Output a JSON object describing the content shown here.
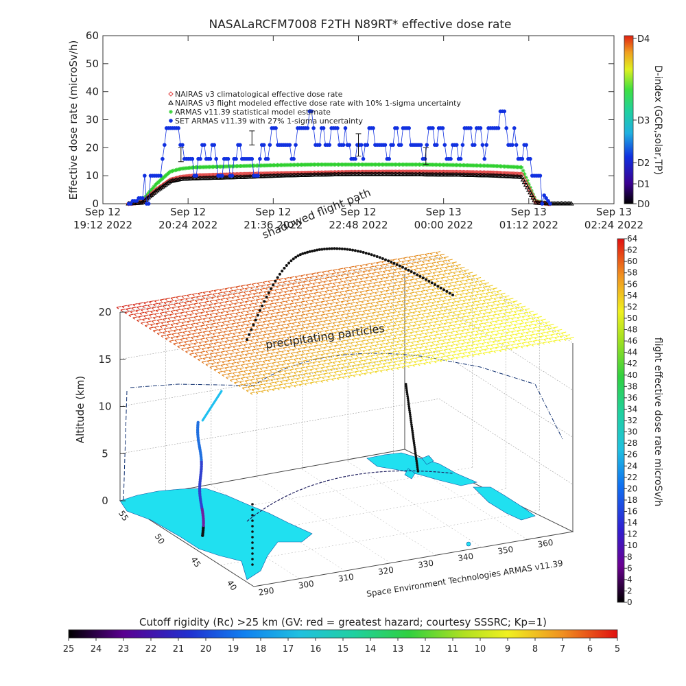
{
  "chart_data": [
    {
      "type": "scatter",
      "title": "NASALaRCFM7008  F2TH N89RT* effective dose rate",
      "ylabel": "Effective dose rate (microSv/h)",
      "ylim": [
        0,
        60
      ],
      "y_ticks": [
        "0",
        "10",
        "20",
        "30",
        "40",
        "50",
        "60"
      ],
      "x_ticks": [
        [
          "Sep 12",
          "19:12 2022"
        ],
        [
          "Sep 12",
          "20:24 2022"
        ],
        [
          "Sep 12",
          "21:36 2022"
        ],
        [
          "Sep 12",
          "22:48 2022"
        ],
        [
          "Sep 13",
          "00:00 2022"
        ],
        [
          "Sep 13",
          "01:12 2022"
        ],
        [
          "Sep 13",
          "02:24 2022"
        ]
      ],
      "legend": [
        {
          "label": "NAIRAS v3 climatological effective dose rate",
          "color": "#e04040",
          "marker": "diamond"
        },
        {
          "label": "NAIRAS v3 flight modeled effective dose rate with 10% 1-sigma uncertainty",
          "color": "#000000",
          "marker": "triangle"
        },
        {
          "label": "ARMAS v11.39 statistical model estimate",
          "color": "#30d030",
          "marker": "asterisk"
        },
        {
          "label": "SET ARMAS v11.39 with 27% 1-sigma uncertainty",
          "color": "#1030e0",
          "marker": "circle"
        }
      ],
      "legend_position": "top-left",
      "right_colorbar": {
        "label": "D-index (GCR,solar,TP)",
        "ticks": [
          "D0",
          "D1",
          "D2",
          "D3",
          "D4"
        ]
      },
      "time_hours": [
        0,
        0.35,
        0.55,
        0.75,
        0.95,
        1.1,
        1.3,
        2.0,
        2.5,
        3.0,
        3.5,
        4.0,
        4.5,
        5.0,
        5.5,
        5.9,
        6.1,
        6.3,
        6.6,
        7.2
      ],
      "series": [
        {
          "name": "NAIRAS v3 climatological effective dose rate",
          "values": [
            null,
            0,
            0.5,
            5,
            8.5,
            9.5,
            10,
            10.5,
            10.8,
            11,
            11.2,
            11.3,
            11.3,
            11.2,
            11,
            10.5,
            0.5,
            0,
            null,
            null
          ]
        },
        {
          "name": "NAIRAS v3 flight modeled effective dose rate with 10% 1-sigma uncertainty",
          "values": [
            null,
            0,
            0.3,
            4.5,
            8,
            8.8,
            9,
            9.5,
            10,
            10.3,
            10.5,
            10.5,
            10.4,
            10.3,
            10,
            9.5,
            0.3,
            0,
            0,
            null
          ]
        },
        {
          "name": "ARMAS v11.39 statistical model estimate",
          "values": [
            null,
            0,
            1,
            7,
            11.5,
            12.5,
            13,
            13.5,
            13.8,
            14,
            14,
            14,
            14,
            13.8,
            13.5,
            13,
            1,
            0,
            null,
            null
          ]
        },
        {
          "name": "SET ARMAS v11.39 with 27% 1-sigma uncertainty",
          "values": [
            null,
            0,
            2,
            10,
            26,
            20,
            16,
            14,
            22,
            26,
            20,
            22,
            24,
            20,
            27,
            22,
            6,
            0,
            null,
            null
          ]
        }
      ],
      "xlim_hours": [
        0,
        7.2
      ]
    },
    {
      "type": "scatter",
      "subtype": "3d-flight-track",
      "ylabel": "Altitude (km)",
      "z_ticks": [
        "0",
        "5",
        "10",
        "15",
        "20"
      ],
      "lon_ticks": [
        "290",
        "300",
        "310",
        "320",
        "330",
        "340",
        "350",
        "360"
      ],
      "lat_ticks": [
        "40",
        "45",
        "50",
        "55"
      ],
      "annotations": [
        "shadowed flight path",
        "precipitating particles"
      ],
      "credit": "Space Environment Technologies ARMAS v11.39",
      "right_colorbar": {
        "label": "flight effective dose rate microSv/h",
        "range": [
          0,
          64
        ],
        "ticks": [
          "0",
          "2",
          "4",
          "6",
          "8",
          "10",
          "12",
          "14",
          "16",
          "18",
          "20",
          "22",
          "24",
          "26",
          "28",
          "30",
          "32",
          "34",
          "36",
          "38",
          "40",
          "42",
          "44",
          "46",
          "48",
          "50",
          "52",
          "54",
          "56",
          "58",
          "60",
          "62",
          "64"
        ]
      },
      "bottom_colorbar": {
        "label": "Cutoff rigidity (Rc) >25 km (GV: red = greatest hazard; courtesy SSSRC; Kp=1)",
        "ticks": [
          "25",
          "24",
          "23",
          "22",
          "21",
          "20",
          "19",
          "18",
          "17",
          "16",
          "15",
          "14",
          "13",
          "12",
          "11",
          "10",
          "9",
          "8",
          "7",
          "6",
          "5"
        ]
      }
    }
  ]
}
